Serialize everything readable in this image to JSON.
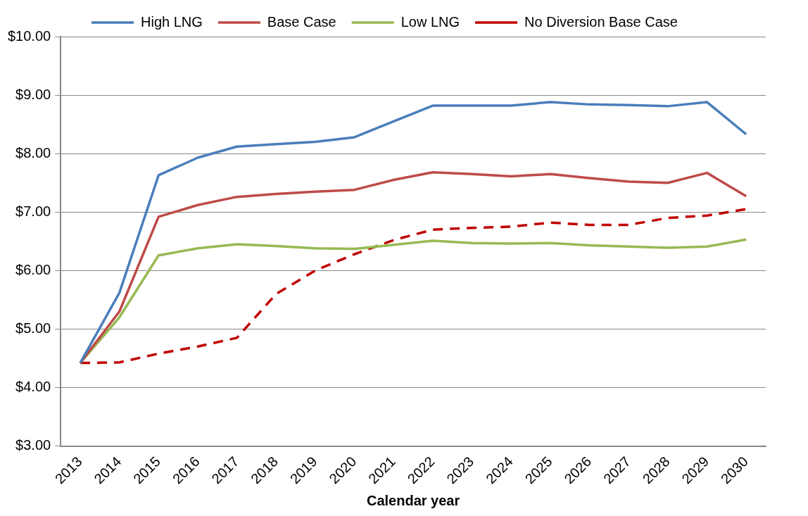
{
  "chart_data": {
    "type": "line",
    "xlabel": "Calendar year",
    "categories": [
      "2013",
      "2014",
      "2015",
      "2016",
      "2017",
      "2018",
      "2019",
      "2020",
      "2021",
      "2022",
      "2023",
      "2024",
      "2025",
      "2026",
      "2027",
      "2028",
      "2029",
      "2030"
    ],
    "series": [
      {
        "name": "High LNG",
        "color": "#4a7ebb",
        "values": [
          4.42,
          5.62,
          7.63,
          7.93,
          8.12,
          8.16,
          8.2,
          8.28,
          8.55,
          8.82,
          8.82,
          8.82,
          8.88,
          8.84,
          8.83,
          8.81,
          8.88,
          8.33
        ]
      },
      {
        "name": "Base Case",
        "color": "#be4b48",
        "values": [
          4.42,
          5.3,
          6.92,
          7.12,
          7.26,
          7.31,
          7.35,
          7.38,
          7.55,
          7.68,
          7.65,
          7.61,
          7.65,
          7.58,
          7.52,
          7.5,
          7.67,
          7.27
        ]
      },
      {
        "name": "Low LNG",
        "color": "#98b954",
        "values": [
          4.42,
          5.2,
          6.26,
          6.38,
          6.45,
          6.42,
          6.38,
          6.37,
          6.44,
          6.51,
          6.47,
          6.46,
          6.47,
          6.43,
          6.41,
          6.39,
          6.41,
          6.53
        ]
      },
      {
        "name": "No Diversion Base Case",
        "color": "#c00000",
        "line_style": "dashed",
        "values": [
          4.42,
          4.43,
          4.58,
          4.7,
          4.85,
          5.6,
          6.0,
          6.28,
          6.52,
          6.7,
          6.73,
          6.75,
          6.82,
          6.78,
          6.78,
          6.9,
          6.94,
          7.05
        ]
      }
    ],
    "ylim": [
      3,
      10
    ],
    "yticks": [
      {
        "value": 3,
        "label": "$3.00"
      },
      {
        "value": 4,
        "label": "$4.00"
      },
      {
        "value": 5,
        "label": "$5.00"
      },
      {
        "value": 6,
        "label": "$6.00"
      },
      {
        "value": 7,
        "label": "$7.00"
      },
      {
        "value": 8,
        "label": "$8.00"
      },
      {
        "value": 9,
        "label": "$9.00"
      },
      {
        "value": 10,
        "label": "$10.00"
      }
    ],
    "grid": "y",
    "legend": "top",
    "marker": "none",
    "line_style": "solid"
  }
}
